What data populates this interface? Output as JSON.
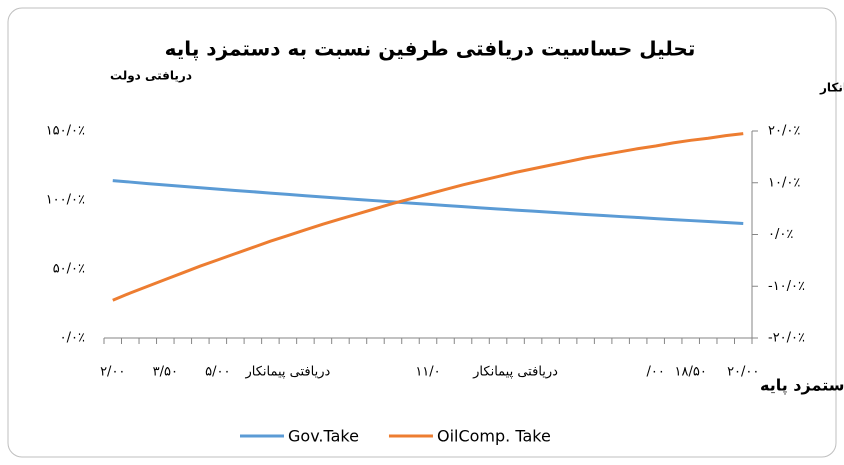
{
  "chart_data": {
    "type": "line",
    "title": "تحلیل حساسیت دریافتی طرفین نسبت به دستمزد پایه",
    "y_label": "دریافتی دولت",
    "y2_label": "دریافتی پیمانکار",
    "x_label": "دستمزد پایه",
    "categories": [
      "۲/۰۰",
      null,
      null,
      "۳/۵۰",
      null,
      null,
      "۵/۰۰",
      null,
      null,
      null,
      "دریافتی پیمانکار",
      null,
      null,
      null,
      null,
      null,
      null,
      null,
      "۱۱/۰",
      null,
      null,
      null,
      null,
      "دریافتی پیمانکار",
      null,
      null,
      null,
      null,
      null,
      null,
      null,
      "۰۰/",
      null,
      "۱۸/۵۰",
      null,
      null,
      "۲۰/۰۰"
    ],
    "series": [
      {
        "name": "Gov.Take",
        "color": "#5b9bd5",
        "axis": "y",
        "values": [
          114.0,
          113.0,
          111.9,
          110.9,
          109.9,
          108.9,
          107.9,
          106.9,
          106.0,
          105.0,
          104.1,
          103.1,
          102.2,
          101.3,
          100.4,
          99.5,
          98.6,
          97.7,
          96.9,
          96.0,
          95.2,
          94.3,
          93.5,
          92.7,
          91.9,
          91.1,
          90.3,
          89.5,
          88.8,
          88.0,
          87.3,
          86.5,
          85.8,
          85.1,
          84.4,
          83.7,
          83.0
        ]
      },
      {
        "name": "OilComp. Take",
        "color": "#ed7d31",
        "axis": "y2",
        "values": [
          -12.7,
          -11.3,
          -10.0,
          -8.7,
          -7.4,
          -6.1,
          -4.9,
          -3.7,
          -2.5,
          -1.3,
          -0.2,
          0.9,
          2.0,
          3.0,
          4.0,
          5.0,
          6.0,
          6.9,
          7.8,
          8.7,
          9.6,
          10.4,
          11.2,
          12.0,
          12.7,
          13.4,
          14.1,
          14.8,
          15.4,
          16.0,
          16.6,
          17.1,
          17.7,
          18.2,
          18.6,
          19.1,
          19.5
        ]
      }
    ],
    "ylim": [
      0,
      150
    ],
    "yticks": [
      {
        "value": 0,
        "label": "۰/۰٪"
      },
      {
        "value": 50,
        "label": "۵۰/۰٪"
      },
      {
        "value": 100,
        "label": "۱۰۰/۰٪"
      },
      {
        "value": 150,
        "label": "۱۵۰/۰٪"
      }
    ],
    "y2lim": [
      -20,
      20
    ],
    "y2ticks": [
      {
        "value": -20,
        "label": "-۲۰/۰٪"
      },
      {
        "value": -10,
        "label": "-۱۰/۰٪"
      },
      {
        "value": 0,
        "label": "۰/۰٪"
      },
      {
        "value": 10,
        "label": "۱۰/۰٪"
      },
      {
        "value": 20,
        "label": "۲۰/۰٪"
      }
    ],
    "grid": false,
    "legend": "bottom"
  }
}
